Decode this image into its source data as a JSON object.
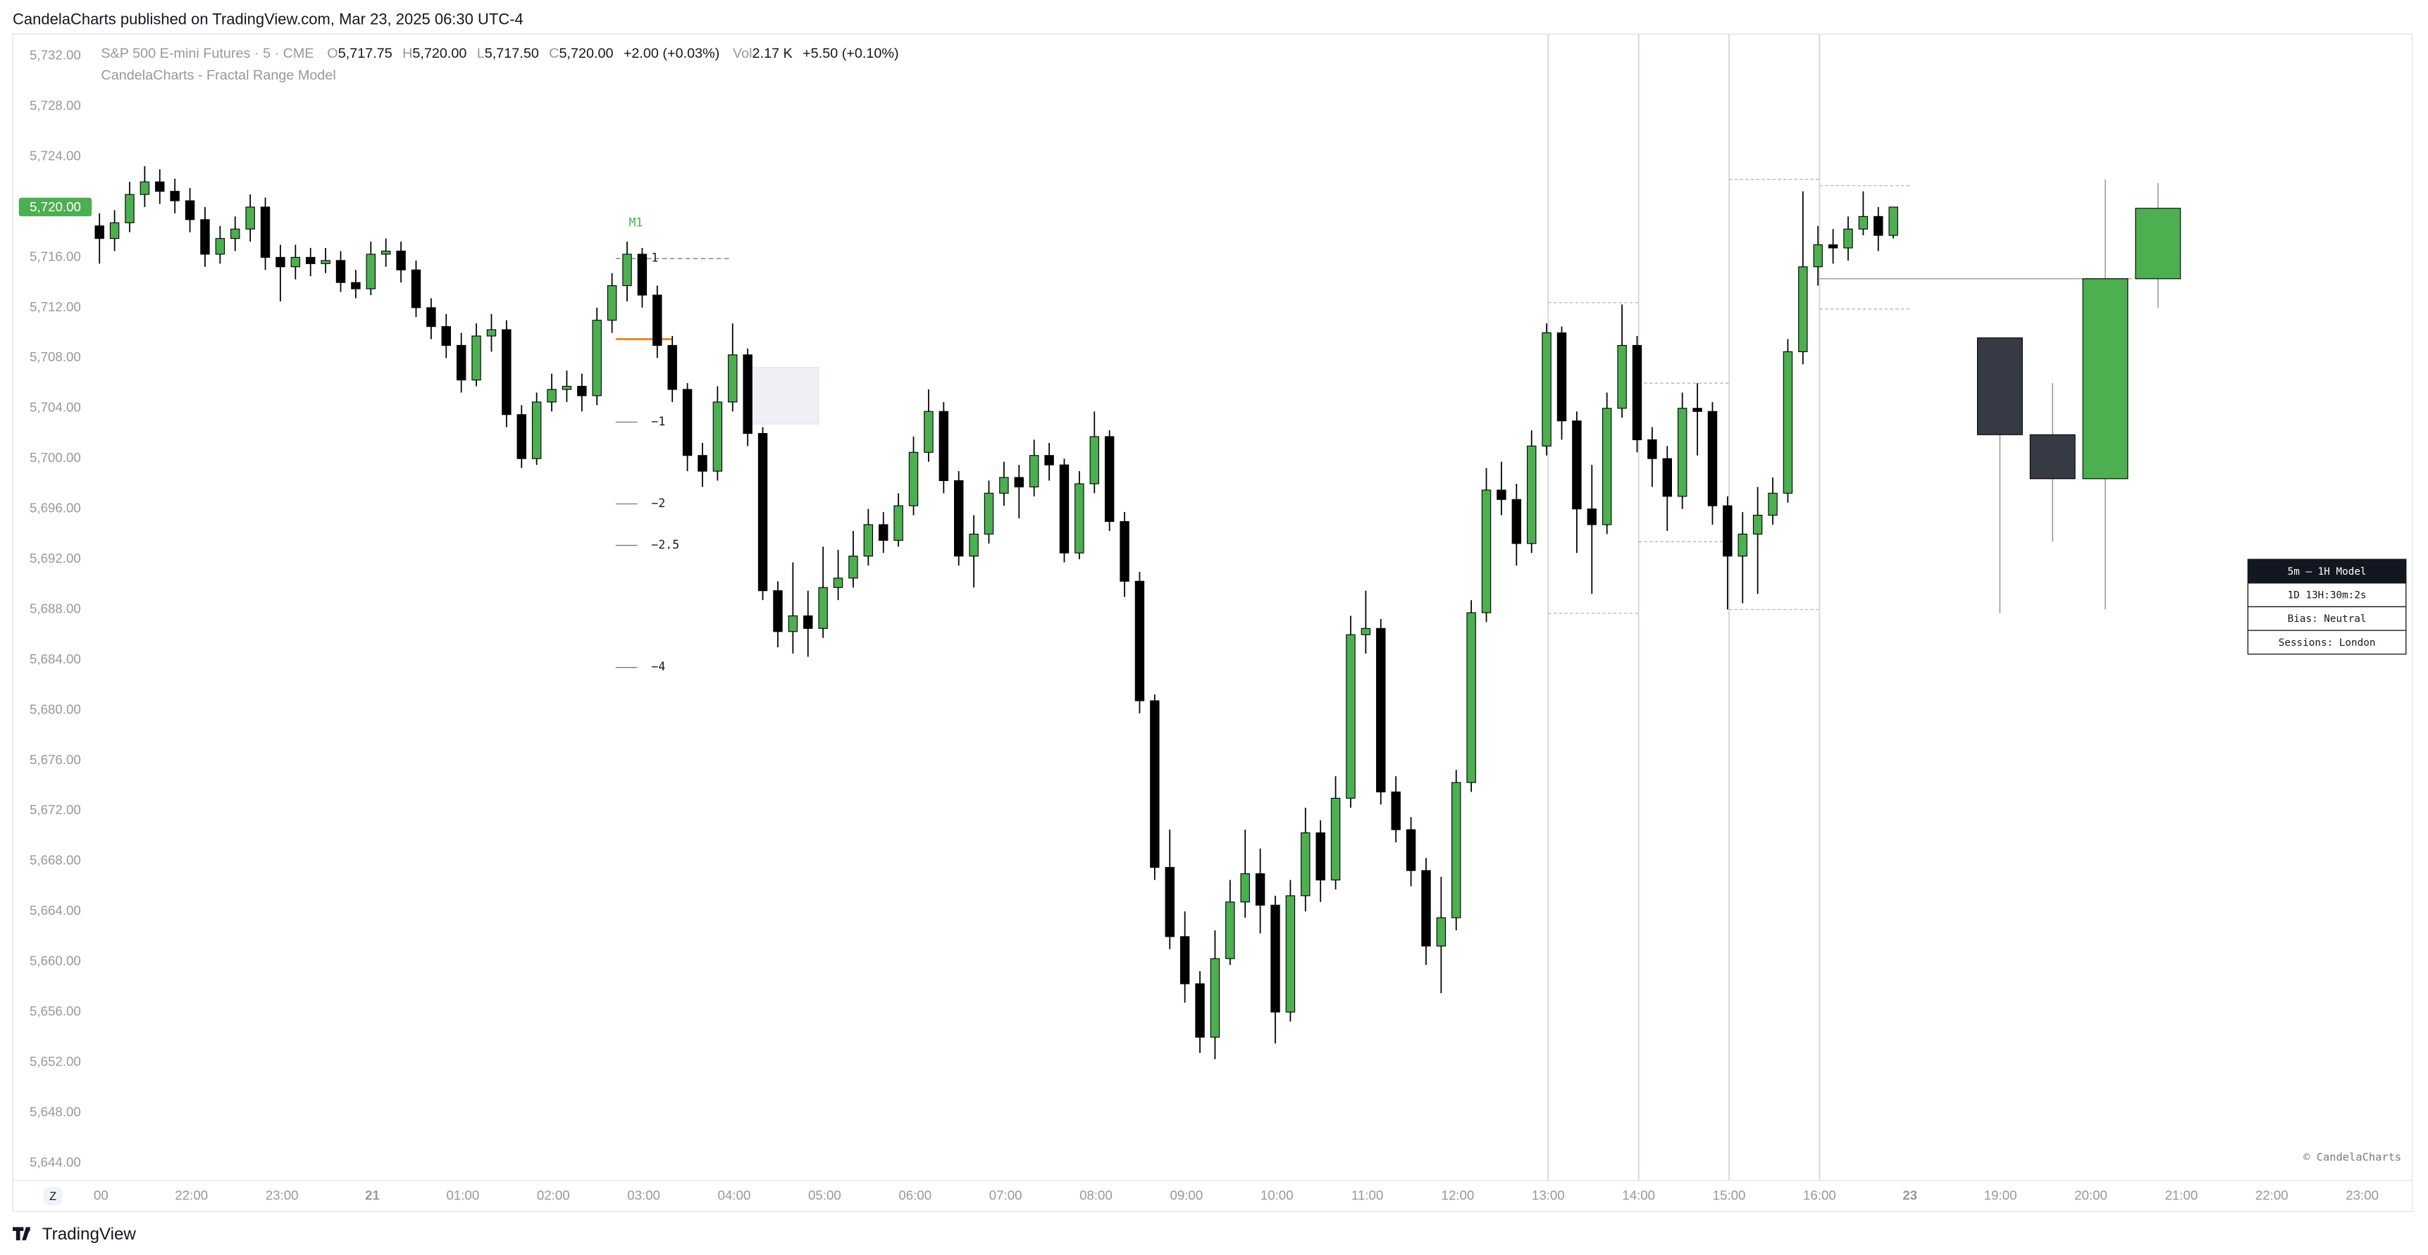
{
  "header": {
    "title": "CandelaCharts published on TradingView.com, Mar 23, 2025 06:30 UTC-4"
  },
  "legend": {
    "symbol": "S&P 500 E-mini Futures · 5 · CME",
    "o_label": "O",
    "o": "5,717.75",
    "h_label": "H",
    "h": "5,720.00",
    "l_label": "L",
    "l": "5,717.50",
    "c_label": "C",
    "c": "5,720.00",
    "change": "+2.00 (+0.03%)",
    "vol_label": "Vol",
    "vol": "2.17 K",
    "vol_change": "+5.50 (+0.10%)",
    "indicator": "CandelaCharts - Fractal Range Model"
  },
  "chart_data": {
    "type": "candlestick",
    "categories": [
      "00",
      "22:00",
      "23:00",
      "21",
      "01:00",
      "02:00",
      "03:00",
      "04:00",
      "05:00",
      "06:00",
      "07:00",
      "08:00",
      "09:00",
      "10:00",
      "11:00",
      "12:00",
      "13:00",
      "14:00",
      "15:00",
      "16:00",
      "23",
      "19:00",
      "20:00",
      "21:00",
      "22:00",
      "23:00"
    ],
    "ylim": [
      5642.6,
      5733.75
    ],
    "yticks": [
      {
        "value": 5644,
        "label": "5,644.00"
      },
      {
        "value": 5648,
        "label": "5,648.00"
      },
      {
        "value": 5652,
        "label": "5,652.00"
      },
      {
        "value": 5656,
        "label": "5,656.00"
      },
      {
        "value": 5660,
        "label": "5,660.00"
      },
      {
        "value": 5664,
        "label": "5,664.00"
      },
      {
        "value": 5668,
        "label": "5,668.00"
      },
      {
        "value": 5672,
        "label": "5,672.00"
      },
      {
        "value": 5676,
        "label": "5,676.00"
      },
      {
        "value": 5680,
        "label": "5,680.00"
      },
      {
        "value": 5684,
        "label": "5,684.00"
      },
      {
        "value": 5688,
        "label": "5,688.00"
      },
      {
        "value": 5692,
        "label": "5,692.00"
      },
      {
        "value": 5696,
        "label": "5,696.00"
      },
      {
        "value": 5700,
        "label": "5,700.00"
      },
      {
        "value": 5704,
        "label": "5,704.00"
      },
      {
        "value": 5708,
        "label": "5,708.00"
      },
      {
        "value": 5712,
        "label": "5,712.00"
      },
      {
        "value": 5716,
        "label": "5,716.00"
      },
      {
        "value": 5720,
        "label": "5,720.00"
      },
      {
        "value": 5724,
        "label": "5,724.00"
      },
      {
        "value": 5728,
        "label": "5,728.00"
      },
      {
        "value": 5732,
        "label": "5,732.00"
      }
    ],
    "grid": false,
    "up_color": "#4caf50",
    "down_color": "#000000",
    "open": [
      5718.5,
      5717.5,
      5718.75,
      5721,
      5722,
      5721.25,
      5720.5,
      5719,
      5716.25,
      5717.5,
      5718.25,
      5720,
      5716,
      5715.25,
      5716,
      5715.5,
      5715.75,
      5714,
      5713.5,
      5716.25,
      5716.5,
      5715,
      5712,
      5710.5,
      5709,
      5706.25,
      5709.75,
      5710.25,
      5703.5,
      5700,
      5704.5,
      5705.5,
      5705.75,
      5705,
      5711,
      5713.75,
      5716.25,
      5713,
      5709,
      5705.5,
      5700.25,
      5699,
      5704.5,
      5708.25,
      5702,
      5689.5,
      5686.25,
      5687.5,
      5686.5,
      5689.75,
      5690.5,
      5692.25,
      5694.75,
      5693.5,
      5696.25,
      5700.5,
      5703.75,
      5698.25,
      5692.25,
      5694,
      5697.25,
      5698.5,
      5697.75,
      5700.25,
      5699.5,
      5692.5,
      5698,
      5701.75,
      5695,
      5690.25,
      5680.75,
      5667.5,
      5662,
      5658.25,
      5654,
      5660.25,
      5664.75,
      5667,
      5664.5,
      5656,
      5665.25,
      5670.25,
      5666.5,
      5673,
      5686,
      5686.5,
      5673.5,
      5670.5,
      5667.25,
      5661.25,
      5663.5,
      5674.25,
      5687.75,
      5697.5,
      5696.75,
      5693.25,
      5701,
      5710,
      5703,
      5696,
      5694.75,
      5704,
      5709,
      5701.5,
      5700,
      5697,
      5704,
      5703.75,
      5696.25,
      5692.25,
      5694,
      5695.5,
      5697.25,
      5708.5,
      5715.25,
      5717,
      5716.75,
      5718.25,
      5719.25,
      5717.75
    ],
    "high": [
      5719.5,
      5719.75,
      5722,
      5723.25,
      5723,
      5722.25,
      5721.5,
      5720,
      5718.5,
      5719.25,
      5721,
      5720.75,
      5717,
      5717,
      5716.75,
      5716.75,
      5716.5,
      5715,
      5717.25,
      5717.5,
      5717.25,
      5715.75,
      5712.75,
      5711.5,
      5710,
      5710.75,
      5711.5,
      5711,
      5704.25,
      5705.25,
      5706.75,
      5707,
      5706.75,
      5712,
      5714.75,
      5717.25,
      5716.75,
      5713.75,
      5709.75,
      5706,
      5701.25,
      5705.75,
      5710.75,
      5708.75,
      5702.5,
      5690.25,
      5691.75,
      5689.5,
      5693,
      5692.75,
      5694.25,
      5696,
      5695.75,
      5697.25,
      5701.75,
      5705.5,
      5704.5,
      5699,
      5695.5,
      5698.25,
      5699.75,
      5699.5,
      5701.5,
      5701.25,
      5700,
      5699,
      5703.75,
      5702.25,
      5695.75,
      5691,
      5681.25,
      5670.5,
      5664,
      5659.25,
      5662.5,
      5666.5,
      5670.5,
      5669,
      5665.25,
      5666.5,
      5672.25,
      5671.25,
      5674.75,
      5687.5,
      5689.5,
      5687.25,
      5674.75,
      5671.5,
      5668.25,
      5666.75,
      5675.25,
      5688.75,
      5699.25,
      5699.75,
      5698,
      5702.25,
      5710.75,
      5710.5,
      5703.75,
      5699.5,
      5705.25,
      5712.25,
      5709.75,
      5702.5,
      5701,
      5705.25,
      5706,
      5704.5,
      5697,
      5695.75,
      5697.75,
      5698.5,
      5709.5,
      5721.25,
      5718.5,
      5718.25,
      5719.25,
      5721.25,
      5720,
      5720
    ],
    "low": [
      5715.5,
      5716.5,
      5718,
      5720,
      5720.25,
      5719.5,
      5718,
      5715.25,
      5715.5,
      5716.5,
      5717.25,
      5715,
      5712.5,
      5714.25,
      5714.5,
      5714.75,
      5713.25,
      5712.75,
      5713,
      5715.25,
      5714,
      5711.25,
      5709.5,
      5708,
      5705.25,
      5705.75,
      5708.5,
      5702.5,
      5699.25,
      5699.5,
      5703.75,
      5704.5,
      5703.75,
      5704.25,
      5710,
      5712.5,
      5712,
      5708,
      5704.5,
      5699,
      5697.75,
      5698.25,
      5703.75,
      5701,
      5688.75,
      5685,
      5684.5,
      5684.25,
      5685.75,
      5688.75,
      5689.75,
      5691.5,
      5692.5,
      5693,
      5695.5,
      5699.75,
      5697.25,
      5691.5,
      5689.75,
      5693.25,
      5696.25,
      5695.25,
      5697,
      5698.25,
      5691.75,
      5692,
      5697.25,
      5694.25,
      5689,
      5679.75,
      5666.5,
      5661,
      5656.75,
      5652.75,
      5652.25,
      5659.75,
      5663.5,
      5662.25,
      5653.5,
      5655.25,
      5664,
      5664.75,
      5665.75,
      5672.25,
      5684.5,
      5672.5,
      5669.5,
      5666,
      5659.75,
      5657.5,
      5662.5,
      5673.5,
      5687,
      5695.5,
      5691.5,
      5692.5,
      5700.25,
      5701.5,
      5692.5,
      5689.25,
      5694,
      5703.25,
      5700.5,
      5697.75,
      5694.25,
      5696,
      5700.25,
      5694.75,
      5688,
      5688.5,
      5689.25,
      5694.75,
      5696.5,
      5707.5,
      5713.75,
      5715.5,
      5715.75,
      5717.75,
      5716.5,
      5717.5
    ],
    "close": [
      5717.5,
      5718.75,
      5721,
      5722,
      5721.25,
      5720.5,
      5719,
      5716.25,
      5717.5,
      5718.25,
      5720,
      5716,
      5715.25,
      5716,
      5715.5,
      5715.75,
      5714,
      5713.5,
      5716.25,
      5716.5,
      5715,
      5712,
      5710.5,
      5709,
      5706.25,
      5709.75,
      5710.25,
      5703.5,
      5700,
      5704.5,
      5705.5,
      5705.75,
      5705,
      5711,
      5713.75,
      5716.25,
      5713,
      5709,
      5705.5,
      5700.25,
      5699,
      5704.5,
      5708.25,
      5702,
      5689.5,
      5686.25,
      5687.5,
      5686.5,
      5689.75,
      5690.5,
      5692.25,
      5694.75,
      5693.5,
      5696.25,
      5700.5,
      5703.75,
      5698.25,
      5692.25,
      5694,
      5697.25,
      5698.5,
      5697.75,
      5700.25,
      5699.5,
      5692.5,
      5698,
      5701.75,
      5695,
      5690.25,
      5680.75,
      5667.5,
      5662,
      5658.25,
      5654,
      5660.25,
      5664.75,
      5667,
      5664.5,
      5656,
      5665.25,
      5670.25,
      5666.5,
      5673,
      5686,
      5686.5,
      5673.5,
      5670.5,
      5667.25,
      5661.25,
      5663.5,
      5674.25,
      5687.75,
      5697.5,
      5696.75,
      5693.25,
      5701,
      5710,
      5703,
      5696,
      5694.75,
      5704,
      5709,
      5701.5,
      5700,
      5697,
      5704,
      5703.75,
      5696.25,
      5692.25,
      5694,
      5695.5,
      5697.25,
      5708.5,
      5715.25,
      5717,
      5716.75,
      5718.25,
      5719.25,
      5717.75,
      5720
    ],
    "last_price": {
      "value": 5720,
      "label": "5,720.00",
      "color": "#4caf50"
    },
    "fractal_label": "M1",
    "levels": [
      {
        "label": "1",
        "value": 5715.9
      },
      {
        "label": "−1",
        "value": 5702.9
      },
      {
        "label": "−2",
        "value": 5696.4
      },
      {
        "label": "−2.5",
        "value": 5693.1
      },
      {
        "label": "−4",
        "value": 5683.4
      }
    ],
    "equilibrium": {
      "value": 5709.5,
      "color": "#f57c00"
    },
    "zone": [
      5707.25,
      5702.75
    ],
    "htf": {
      "up_color": "#4caf50",
      "down_color": "#363a45",
      "open": [
        5709.6,
        5701.9,
        5698.4,
        5714.3
      ],
      "high": [
        5709.6,
        5706,
        5722.2,
        5721.9
      ],
      "low": [
        5687.7,
        5693.4,
        5688,
        5712
      ],
      "close": [
        5701.9,
        5698.4,
        5714.3,
        5719.9
      ]
    },
    "ranges": [
      [
        5712.4,
        5687.7
      ],
      [
        5706,
        5693.4
      ],
      [
        5722.2,
        5688
      ],
      [
        5721.7,
        5711.9
      ]
    ],
    "table": [
      "5m — 1H Model",
      "1D 13H:30m:2s",
      "Bias: Neutral",
      "Sessions: London"
    ],
    "watermark": "© CandelaCharts",
    "z_button": "Z"
  },
  "footer": {
    "brand": "TradingView"
  }
}
